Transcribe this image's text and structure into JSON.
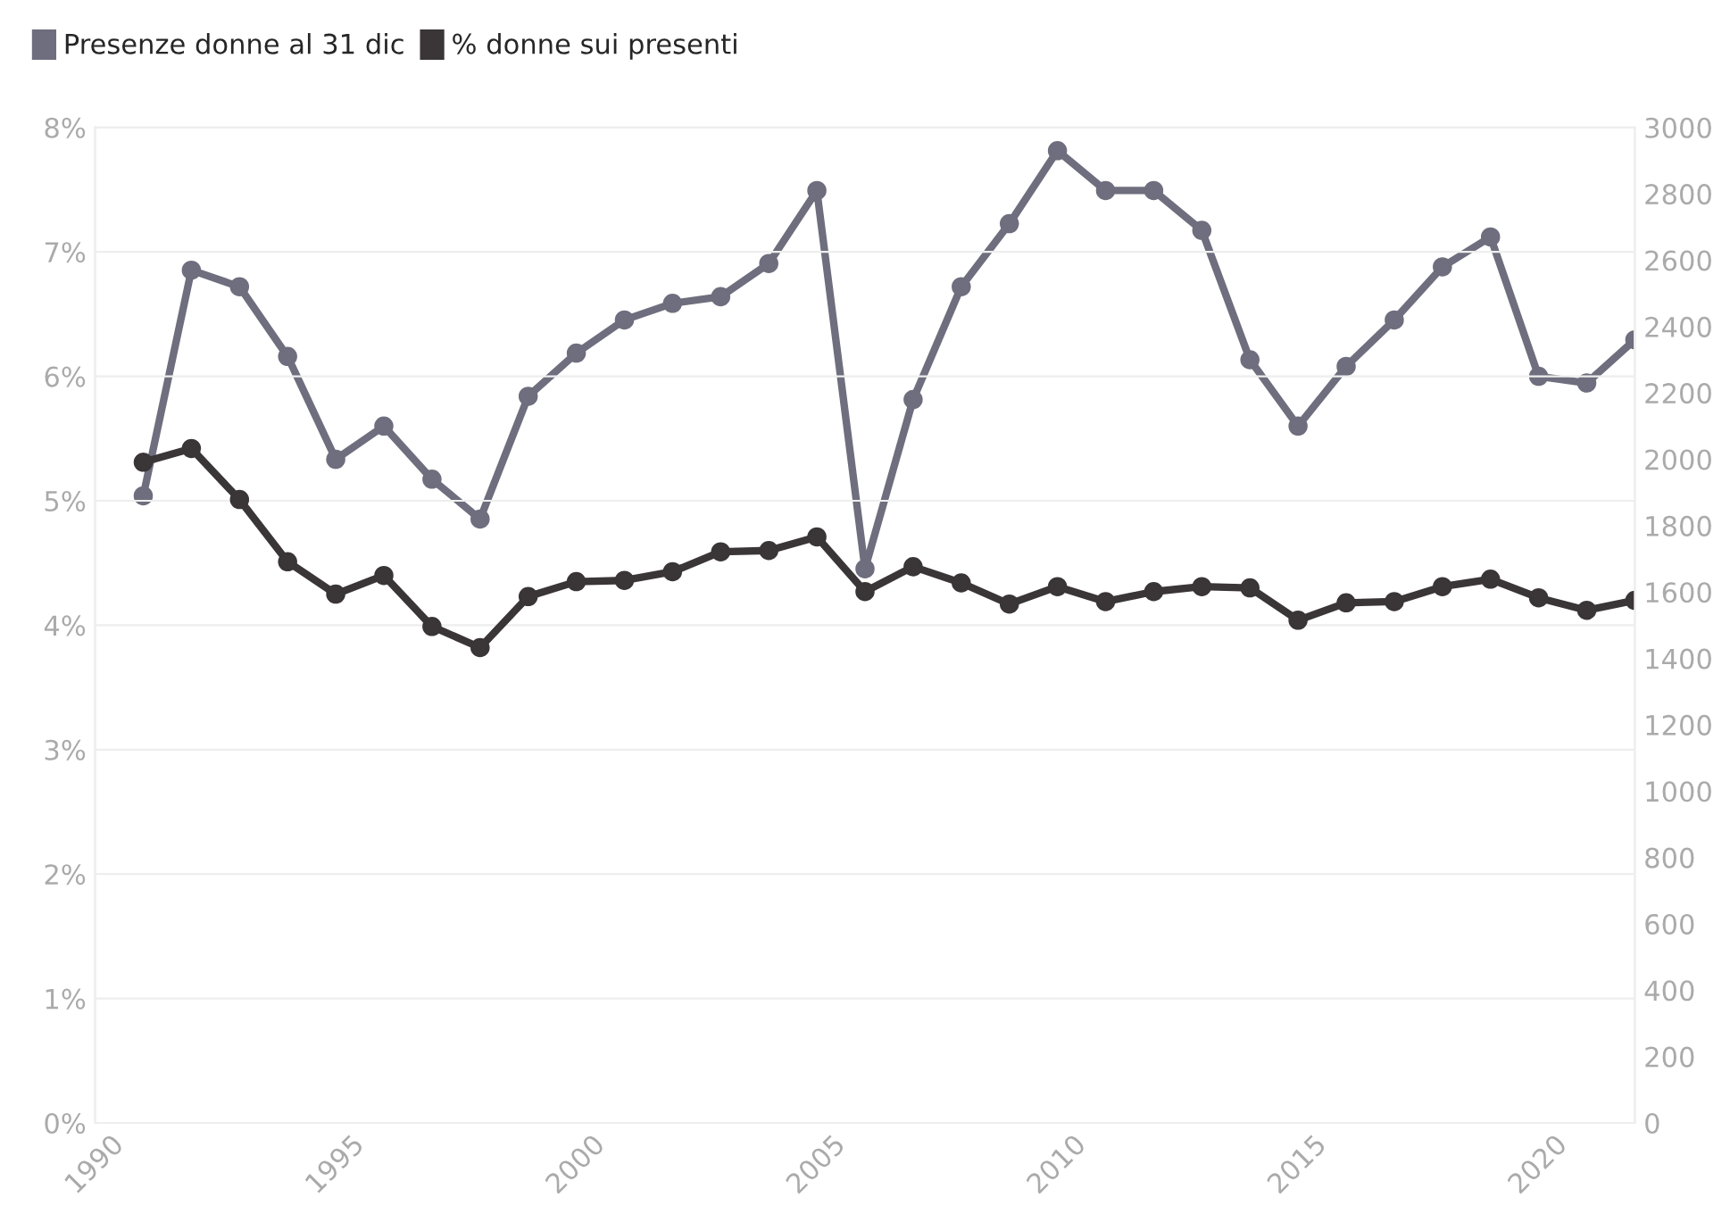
{
  "chart_data": {
    "type": "line",
    "x": [
      1991,
      1992,
      1993,
      1994,
      1995,
      1996,
      1997,
      1998,
      1999,
      2000,
      2001,
      2002,
      2003,
      2004,
      2005,
      2006,
      2007,
      2008,
      2009,
      2010,
      2011,
      2012,
      2013,
      2014,
      2015,
      2016,
      2017,
      2018,
      2019,
      2020,
      2021,
      2022
    ],
    "series": [
      {
        "name": "Presenze donne al 31 dic",
        "color": "#6e6e7e",
        "axis": "y2",
        "values": [
          1890,
          2570,
          2520,
          2310,
          2000,
          2100,
          1940,
          1820,
          2190,
          2320,
          2420,
          2470,
          2490,
          2590,
          2810,
          1670,
          2180,
          2520,
          2710,
          2930,
          2810,
          2810,
          2690,
          2300,
          2100,
          2280,
          2420,
          2580,
          2670,
          2250,
          2230,
          2360
        ]
      },
      {
        "name": "% donne sui presenti",
        "color": "#3a3537",
        "axis": "y",
        "values": [
          5.31,
          5.42,
          5.01,
          4.51,
          4.25,
          4.4,
          3.99,
          3.82,
          4.23,
          4.35,
          4.36,
          4.43,
          4.59,
          4.6,
          4.71,
          4.27,
          4.47,
          4.34,
          4.17,
          4.31,
          4.19,
          4.27,
          4.31,
          4.3,
          4.04,
          4.18,
          4.19,
          4.31,
          4.37,
          4.22,
          4.12,
          4.2
        ]
      }
    ],
    "xlim": [
      1990,
      2022
    ],
    "xticks": [
      1990,
      1995,
      2000,
      2005,
      2010,
      2015,
      2020
    ],
    "ylim": [
      0,
      8
    ],
    "yticks": [
      {
        "value": 0,
        "label": "0%"
      },
      {
        "value": 1,
        "label": "1%"
      },
      {
        "value": 2,
        "label": "2%"
      },
      {
        "value": 3,
        "label": "3%"
      },
      {
        "value": 4,
        "label": "4%"
      },
      {
        "value": 5,
        "label": "5%"
      },
      {
        "value": 6,
        "label": "6%"
      },
      {
        "value": 7,
        "label": "7%"
      },
      {
        "value": 8,
        "label": "8%"
      }
    ],
    "y2lim": [
      0,
      3000
    ],
    "y2ticks": [
      0,
      200,
      400,
      600,
      800,
      1000,
      1200,
      1400,
      1600,
      1800,
      2000,
      2200,
      2400,
      2600,
      2800,
      3000
    ],
    "grid": "y",
    "legend": "top left",
    "marker": "circle",
    "line_style": "solid"
  }
}
